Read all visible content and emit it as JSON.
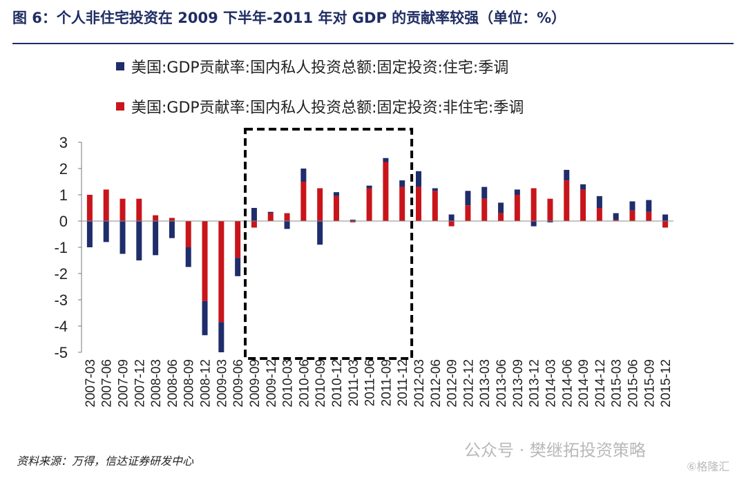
{
  "figure": {
    "title": "图 6：个人非住宅投资在 2009 下半年-2011 年对 GDP 的贡献率较强（单位：%）",
    "source": "资料来源：万得，信达证券研发中心",
    "watermark": "公众号 · 樊继拓投资策略",
    "logo": "⑥格隆汇"
  },
  "chart_data": {
    "type": "bar",
    "stacked": true,
    "title": "",
    "xlabel": "",
    "ylabel": "",
    "ylim": [
      -5,
      3
    ],
    "yticks": [
      3,
      2,
      1,
      0,
      -1,
      -2,
      -3,
      -4,
      -5
    ],
    "grid": false,
    "highlight": {
      "from": "2009-09",
      "to": "2011-12",
      "style": "dashed box"
    },
    "categories": [
      "2007-03",
      "2007-06",
      "2007-09",
      "2007-12",
      "2008-03",
      "2008-06",
      "2008-09",
      "2008-12",
      "2009-03",
      "2009-06",
      "2009-09",
      "2009-12",
      "2010-03",
      "2010-06",
      "2010-09",
      "2010-12",
      "2011-03",
      "2011-06",
      "2011-09",
      "2011-12",
      "2012-03",
      "2012-06",
      "2012-09",
      "2012-12",
      "2013-03",
      "2013-06",
      "2013-09",
      "2013-12",
      "2014-03",
      "2014-06",
      "2014-09",
      "2014-12",
      "2015-03",
      "2015-06",
      "2015-09",
      "2015-12"
    ],
    "tick_labels": [
      "2007-03",
      "2007-06",
      "2007-09",
      "2007-12",
      "2008-03",
      "2008-06",
      "2008-09",
      "2008-12",
      "2009-03",
      "2009-06",
      "2009-09",
      "2009-12",
      "2010-03",
      "2010-06",
      "2010-09",
      "2010-12",
      "2011-03",
      "2011-06",
      "2011-09",
      "2011-12",
      "2012-03",
      "2012-06",
      "2012-09",
      "2012-12",
      "2013-03",
      "2013-06",
      "2013-09",
      "2013-12",
      "2014-03",
      "2014-06",
      "2014-09",
      "2014-12",
      "2015-03",
      "2015-06",
      "2015-09",
      "2015-12"
    ],
    "series": [
      {
        "name": "美国:GDP贡献率:国内私人投资总额:固定投资:住宅:季调",
        "color": "#1f2d6b",
        "values": [
          -1.0,
          -0.8,
          -1.25,
          -1.5,
          -1.3,
          -0.65,
          -0.75,
          -1.3,
          -1.15,
          -0.7,
          0.5,
          0.05,
          -0.3,
          0.5,
          -0.9,
          0.15,
          0.05,
          0.1,
          0.15,
          0.25,
          0.6,
          0.1,
          0.25,
          0.55,
          0.45,
          0.4,
          0.2,
          -0.2,
          -0.05,
          0.4,
          0.2,
          0.45,
          0.25,
          0.35,
          0.45,
          0.25
        ]
      },
      {
        "name": "美国:GDP贡献率:国内私人投资总额:固定投资:非住宅:季调",
        "color": "#c8151b",
        "values": [
          1.0,
          1.2,
          0.85,
          0.85,
          0.22,
          0.12,
          -1.0,
          -3.05,
          -3.85,
          -1.4,
          -0.25,
          0.3,
          0.3,
          1.5,
          1.25,
          0.95,
          -0.05,
          1.25,
          2.25,
          1.3,
          1.3,
          1.15,
          -0.2,
          0.6,
          0.85,
          0.3,
          1.0,
          1.25,
          0.85,
          1.55,
          1.2,
          0.5,
          0.05,
          0.4,
          0.35,
          -0.25
        ]
      }
    ]
  }
}
